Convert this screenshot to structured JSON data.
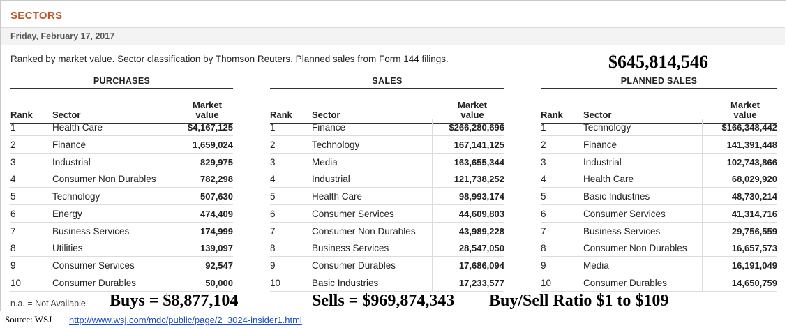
{
  "header": {
    "title": "SECTORS",
    "date": "Friday, February 17, 2017",
    "description": "Ranked by market value. Sector classification by Thomson Reuters. Planned sales from Form 144 filings.",
    "planned_total": "$645,814,546"
  },
  "columns": {
    "rank": "Rank",
    "sector": "Sector",
    "market_line1": "Market",
    "market_line2": "value"
  },
  "purchases": {
    "title": "PURCHASES",
    "rows": [
      {
        "rank": "1",
        "sector": "Health Care",
        "value": "$4,167,125"
      },
      {
        "rank": "2",
        "sector": "Finance",
        "value": "1,659,024"
      },
      {
        "rank": "3",
        "sector": "Industrial",
        "value": "829,975"
      },
      {
        "rank": "4",
        "sector": "Consumer Non Durables",
        "value": "782,298"
      },
      {
        "rank": "5",
        "sector": "Technology",
        "value": "507,630"
      },
      {
        "rank": "6",
        "sector": "Energy",
        "value": "474,409"
      },
      {
        "rank": "7",
        "sector": "Business Services",
        "value": "174,999"
      },
      {
        "rank": "8",
        "sector": "Utilities",
        "value": "139,097"
      },
      {
        "rank": "9",
        "sector": "Consumer Services",
        "value": "92,547"
      },
      {
        "rank": "10",
        "sector": "Consumer Durables",
        "value": "50,000"
      }
    ]
  },
  "sales": {
    "title": "SALES",
    "rows": [
      {
        "rank": "1",
        "sector": "Finance",
        "value": "$266,280,696"
      },
      {
        "rank": "2",
        "sector": "Technology",
        "value": "167,141,125"
      },
      {
        "rank": "3",
        "sector": "Media",
        "value": "163,655,344"
      },
      {
        "rank": "4",
        "sector": "Industrial",
        "value": "121,738,252"
      },
      {
        "rank": "5",
        "sector": "Health Care",
        "value": "98,993,174"
      },
      {
        "rank": "6",
        "sector": "Consumer Services",
        "value": "44,609,803"
      },
      {
        "rank": "7",
        "sector": "Consumer Non Durables",
        "value": "43,989,228"
      },
      {
        "rank": "8",
        "sector": "Business Services",
        "value": "28,547,050"
      },
      {
        "rank": "9",
        "sector": "Consumer Durables",
        "value": "17,686,094"
      },
      {
        "rank": "10",
        "sector": "Basic Industries",
        "value": "17,233,577"
      }
    ]
  },
  "planned_sales": {
    "title": "PLANNED SALES",
    "rows": [
      {
        "rank": "1",
        "sector": "Technology",
        "value": "$166,348,442"
      },
      {
        "rank": "2",
        "sector": "Finance",
        "value": "141,391,448"
      },
      {
        "rank": "3",
        "sector": "Industrial",
        "value": "102,743,866"
      },
      {
        "rank": "4",
        "sector": "Health Care",
        "value": "68,029,920"
      },
      {
        "rank": "5",
        "sector": "Basic Industries",
        "value": "48,730,214"
      },
      {
        "rank": "6",
        "sector": "Consumer Services",
        "value": "41,314,716"
      },
      {
        "rank": "7",
        "sector": "Business Services",
        "value": "29,756,559"
      },
      {
        "rank": "8",
        "sector": "Consumer Non Durables",
        "value": "16,657,573"
      },
      {
        "rank": "9",
        "sector": "Media",
        "value": "16,191,049"
      },
      {
        "rank": "10",
        "sector": "Consumer Durables",
        "value": "14,650,759"
      }
    ]
  },
  "footer": {
    "na_note": "n.a. = Not Available",
    "buys": "Buys = $8,877,104",
    "sells": "Sells = $969,874,343",
    "ratio": "Buy/Sell Ratio $1 to $109",
    "source_label": "Source: WSJ",
    "source_link": "http://www.wsj.com/mdc/public/page/2_3024-insider1.html"
  },
  "colors": {
    "title_accent": "#c0572b",
    "link": "#1a4fc4"
  }
}
